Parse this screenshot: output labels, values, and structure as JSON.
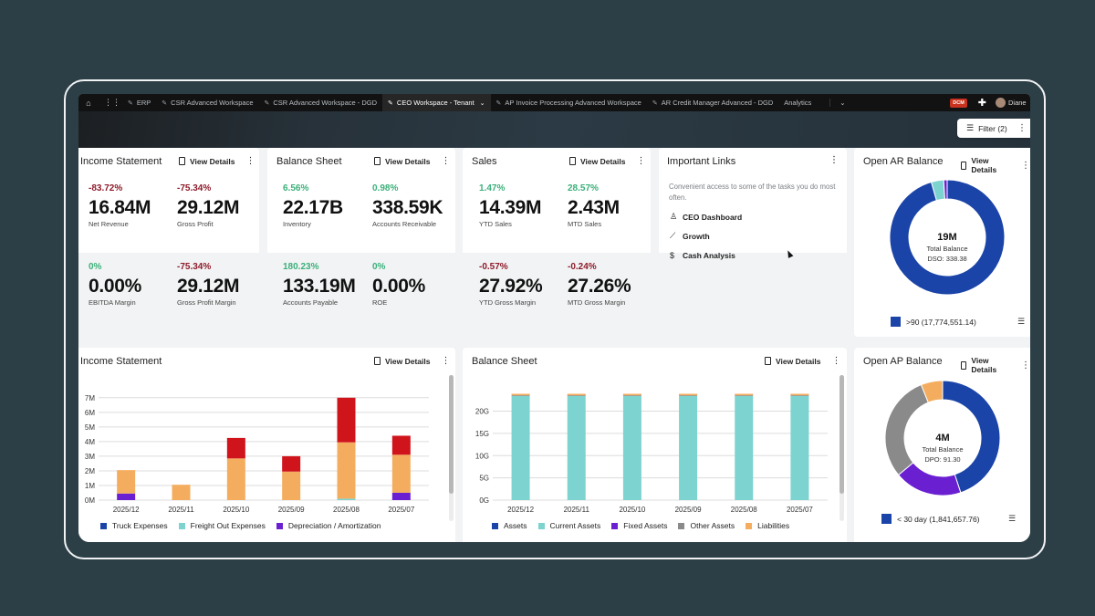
{
  "topbar": {
    "tabs": [
      {
        "label": "ERP"
      },
      {
        "label": "CSR Advanced Workspace"
      },
      {
        "label": "CSR Advanced Workspace - DGD"
      },
      {
        "label": "CEO Workspace - Tenant",
        "active": true
      },
      {
        "label": "AP Invoice Processing Advanced Workspace"
      },
      {
        "label": "AR Credit Manager Advanced - DGD"
      },
      {
        "label": "Analytics"
      }
    ],
    "badge": "DCM",
    "user_name": "Diane"
  },
  "filter": {
    "label": "Filter (2)"
  },
  "view_details": "View Details",
  "income_statement_card": {
    "title": "Income Statement",
    "metrics": [
      {
        "pct": "-83.72%",
        "value": "16.84M",
        "label": "Net Revenue"
      },
      {
        "pct": "-75.34%",
        "value": "29.12M",
        "label": "Gross Profit"
      },
      {
        "pct": "0%",
        "value": "0.00%",
        "label": "EBITDA Margin"
      },
      {
        "pct": "-75.34%",
        "value": "29.12M",
        "label": "Gross Profit Margin"
      }
    ]
  },
  "balance_sheet_card": {
    "title": "Balance Sheet",
    "metrics": [
      {
        "pct": "6.56%",
        "value": "22.17B",
        "label": "Inventory"
      },
      {
        "pct": "0.98%",
        "value": "338.59K",
        "label": "Accounts Receivable"
      },
      {
        "pct": "180.23%",
        "value": "133.19M",
        "label": "Accounts Payable"
      },
      {
        "pct": "0%",
        "value": "0.00%",
        "label": "ROE"
      }
    ]
  },
  "sales_card": {
    "title": "Sales",
    "metrics": [
      {
        "pct": "1.47%",
        "value": "14.39M",
        "label": "YTD Sales"
      },
      {
        "pct": "28.57%",
        "value": "2.43M",
        "label": "MTD Sales"
      },
      {
        "pct": "-0.57%",
        "value": "27.92%",
        "label": "YTD Gross Margin"
      },
      {
        "pct": "-0.24%",
        "value": "27.26%",
        "label": "MTD Gross Margin"
      }
    ]
  },
  "important_links": {
    "title": "Important Links",
    "description": "Convenient access to some of the tasks you do most often.",
    "links": [
      {
        "label": "CEO Dashboard",
        "icon": "user-icon"
      },
      {
        "label": "Growth",
        "icon": "chart-icon"
      },
      {
        "label": "Cash Analysis",
        "icon": "dollar-icon"
      }
    ]
  },
  "open_ar": {
    "title": "Open AR Balance",
    "center_value": "19M",
    "center_label": "Total Balance",
    "center_sub": "DSO: 338.38",
    "legend": ">90 (17,774,551.14)"
  },
  "open_ap": {
    "title": "Open AP Balance",
    "center_value": "4M",
    "center_label": "Total Balance",
    "center_sub": "DPO: 91.30",
    "legend": "< 30 day (1,841,657.76)"
  },
  "colors": {
    "truck": "#1b44a8",
    "freight": "#7dd3cf",
    "depreciation": "#6a1fd1",
    "orange": "#f4ad5f",
    "red": "#d0141c",
    "grey": "#8a8a8a"
  },
  "chart_data": [
    {
      "type": "bar",
      "title": "Income Statement",
      "stacked": true,
      "categories": [
        "2025/12",
        "2025/11",
        "2025/10",
        "2025/09",
        "2025/08",
        "2025/07"
      ],
      "y_ticks": [
        "0M",
        "1M",
        "2M",
        "3M",
        "4M",
        "5M",
        "6M",
        "7M"
      ],
      "ylim": [
        0,
        7.3
      ],
      "series": [
        {
          "name": "Truck Expenses",
          "values": [
            0,
            0,
            0,
            0,
            0,
            0
          ]
        },
        {
          "name": "Freight Out Expenses",
          "values": [
            0,
            0,
            0,
            0,
            0.1,
            0
          ]
        },
        {
          "name": "Depreciation / Amortization",
          "values": [
            0.45,
            0,
            0,
            0,
            0,
            0.5
          ]
        },
        {
          "values": [
            1.6,
            1.05,
            2.85,
            1.95,
            3.85,
            2.6
          ]
        },
        {
          "values": [
            0,
            0,
            1.4,
            1.05,
            3.05,
            1.3
          ]
        }
      ],
      "legend_position": "bottom"
    },
    {
      "type": "bar",
      "title": "Balance Sheet",
      "stacked": true,
      "categories": [
        "2025/12",
        "2025/11",
        "2025/10",
        "2025/09",
        "2025/08",
        "2025/07"
      ],
      "y_ticks": [
        "0G",
        "5G",
        "10G",
        "15G",
        "20G"
      ],
      "ylim": [
        0,
        24
      ],
      "series": [
        {
          "name": "Assets",
          "values": [
            0,
            0,
            0,
            0,
            0,
            0
          ]
        },
        {
          "name": "Current Assets",
          "values": [
            23.4,
            23.4,
            23.4,
            23.4,
            23.4,
            23.4
          ]
        },
        {
          "name": "Fixed Assets",
          "values": [
            0,
            0,
            0,
            0,
            0,
            0
          ]
        },
        {
          "name": "Other Assets",
          "values": [
            0.15,
            0.15,
            0.15,
            0.15,
            0.15,
            0.15
          ]
        },
        {
          "name": "Liabilities",
          "values": [
            0.35,
            0.35,
            0.35,
            0.35,
            0.35,
            0.35
          ]
        }
      ],
      "legend_position": "bottom"
    },
    {
      "type": "pie",
      "title": "Open AR Balance",
      "donut": true,
      "slices": [
        {
          "label": ">90",
          "value": 17774551.14,
          "color": "#1b44a8"
        },
        {
          "value": 650000,
          "color": "#7dd3cf"
        },
        {
          "value": 180000,
          "color": "#6a1fd1"
        }
      ]
    },
    {
      "type": "pie",
      "title": "Open AP Balance",
      "donut": true,
      "slices": [
        {
          "label": "< 30 day",
          "value": 1841657.76,
          "color": "#1b44a8"
        },
        {
          "value": 780000,
          "color": "#6a1fd1"
        },
        {
          "value": 1230000,
          "color": "#8a8a8a"
        },
        {
          "value": 250000,
          "color": "#f4ad5f"
        }
      ]
    }
  ]
}
